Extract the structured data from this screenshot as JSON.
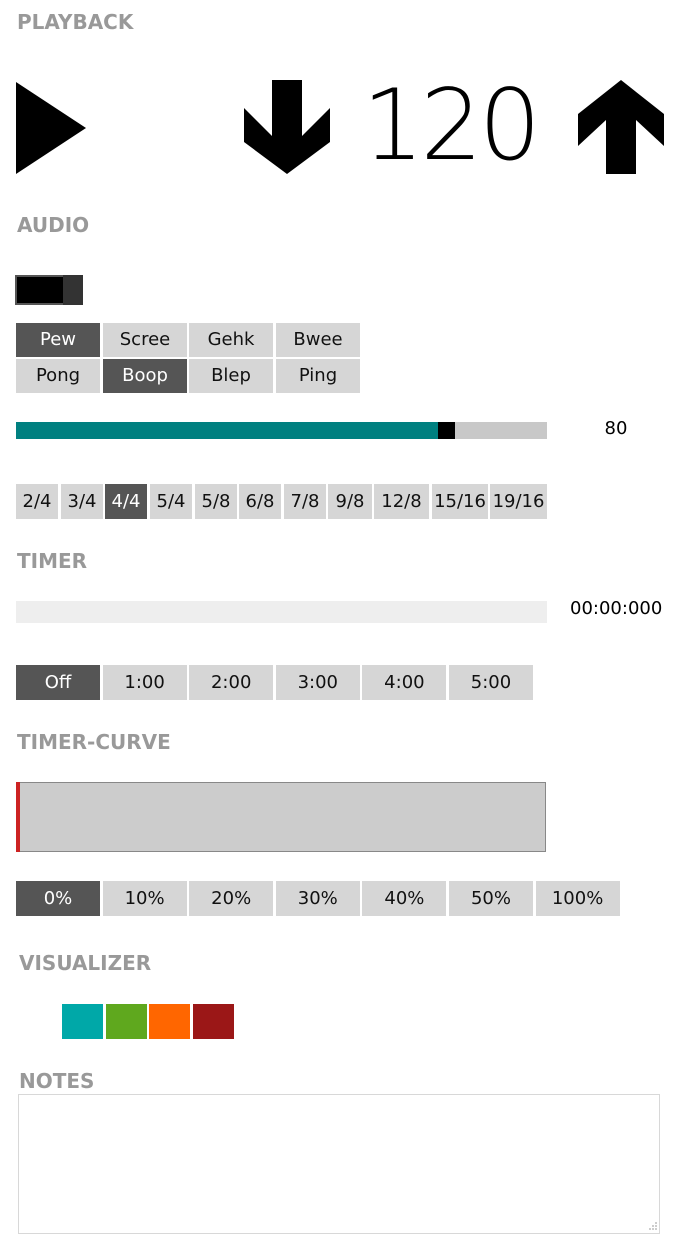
{
  "labels": {
    "playback": "PLAYBACK",
    "audio": "AUDIO",
    "timer": "TIMER",
    "timer_curve": "TIMER-CURVE",
    "visualizer": "VISUALIZER",
    "notes": "NOTES"
  },
  "playback": {
    "play_icon": "play-icon",
    "tempo_down_icon": "arrow-down-icon",
    "tempo_up_icon": "arrow-up-icon",
    "tempo": "120"
  },
  "audio": {
    "toggle_on": true,
    "sounds": [
      {
        "label": "Pew",
        "selected": true
      },
      {
        "label": "Scree",
        "selected": false
      },
      {
        "label": "Gehk",
        "selected": false
      },
      {
        "label": "Bwee",
        "selected": false
      },
      {
        "label": "Pong",
        "selected": false
      },
      {
        "label": "Boop",
        "selected": true
      },
      {
        "label": "Blep",
        "selected": false
      },
      {
        "label": "Ping",
        "selected": false
      }
    ],
    "volume": "80",
    "volume_fraction": 0.8,
    "volume_color": "#008080",
    "time_signatures": [
      {
        "label": "2/4",
        "selected": false
      },
      {
        "label": "3/4",
        "selected": false
      },
      {
        "label": "4/4",
        "selected": true
      },
      {
        "label": "5/4",
        "selected": false
      },
      {
        "label": "5/8",
        "selected": false
      },
      {
        "label": "6/8",
        "selected": false
      },
      {
        "label": "7/8",
        "selected": false
      },
      {
        "label": "9/8",
        "selected": false
      },
      {
        "label": "12/8",
        "selected": false
      },
      {
        "label": "15/16",
        "selected": false
      },
      {
        "label": "19/16",
        "selected": false
      }
    ]
  },
  "timer": {
    "time": "00:00:000",
    "progress_fraction": 0,
    "options": [
      {
        "label": "Off",
        "selected": true
      },
      {
        "label": "1:00",
        "selected": false
      },
      {
        "label": "2:00",
        "selected": false
      },
      {
        "label": "3:00",
        "selected": false
      },
      {
        "label": "4:00",
        "selected": false
      },
      {
        "label": "5:00",
        "selected": false
      }
    ]
  },
  "timer_curve": {
    "marker_color": "#cc2222",
    "options": [
      {
        "label": "0%",
        "selected": true
      },
      {
        "label": "10%",
        "selected": false
      },
      {
        "label": "20%",
        "selected": false
      },
      {
        "label": "30%",
        "selected": false
      },
      {
        "label": "40%",
        "selected": false
      },
      {
        "label": "50%",
        "selected": false
      },
      {
        "label": "100%",
        "selected": false
      }
    ]
  },
  "visualizer": {
    "colors": [
      "#00a8a8",
      "#5fa81e",
      "#ff6600",
      "#9b1717"
    ]
  },
  "notes": {
    "value": "",
    "placeholder": ""
  }
}
